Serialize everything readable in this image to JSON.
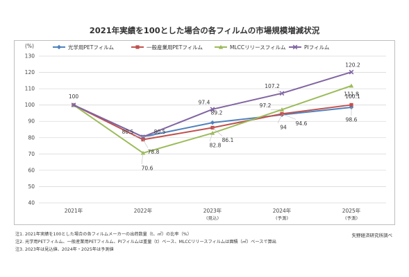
{
  "chart_data": {
    "type": "line",
    "title": "2021年実績を100とした場合の各フィルムの市場規模増減状況",
    "ylabel": "(%)",
    "ylim": [
      40,
      130
    ],
    "yticks": [
      40,
      50,
      60,
      70,
      80,
      90,
      100,
      110,
      120,
      130
    ],
    "grid": true,
    "legend_position": "top",
    "categories": [
      "2021年",
      "2022年",
      "2023年",
      "2024年",
      "2025年"
    ],
    "category_sublabels": [
      "",
      "",
      "(見込)",
      "(予測)",
      "(予測)"
    ],
    "series": [
      {
        "name": "光学用PETフィルム",
        "color": "#4f81bd",
        "marker": "diamond",
        "values": [
          100,
          80.5,
          89.2,
          94.0,
          98.6
        ]
      },
      {
        "name": "一般産業用PETフィルム",
        "color": "#c0504d",
        "marker": "square",
        "values": [
          100,
          78.8,
          86.1,
          94.6,
          100.1
        ]
      },
      {
        "name": "MLCCリリースフィルム",
        "color": "#9bbb59",
        "marker": "triangle",
        "values": [
          100,
          70.6,
          82.8,
          97.2,
          111.8
        ]
      },
      {
        "name": "PIフィルム",
        "color": "#8064a2",
        "marker": "x",
        "values": [
          100,
          80.5,
          97.4,
          107.2,
          120.2
        ]
      }
    ]
  },
  "notes": [
    "注1. 2021年実績を100とした場合の各フィルムメーカーの出荷数量（t、㎡）の比率（%）",
    "注2. 光学用PETフィルム、一般産業用PETフィルム、PIフィルムは重量（t）ベース、MLCCリリースフィルムは面積（㎡）ベースで算出",
    "注3. 2023年は見込値、2024年・2025年は予測値"
  ],
  "source": "矢野経済研究所調べ"
}
